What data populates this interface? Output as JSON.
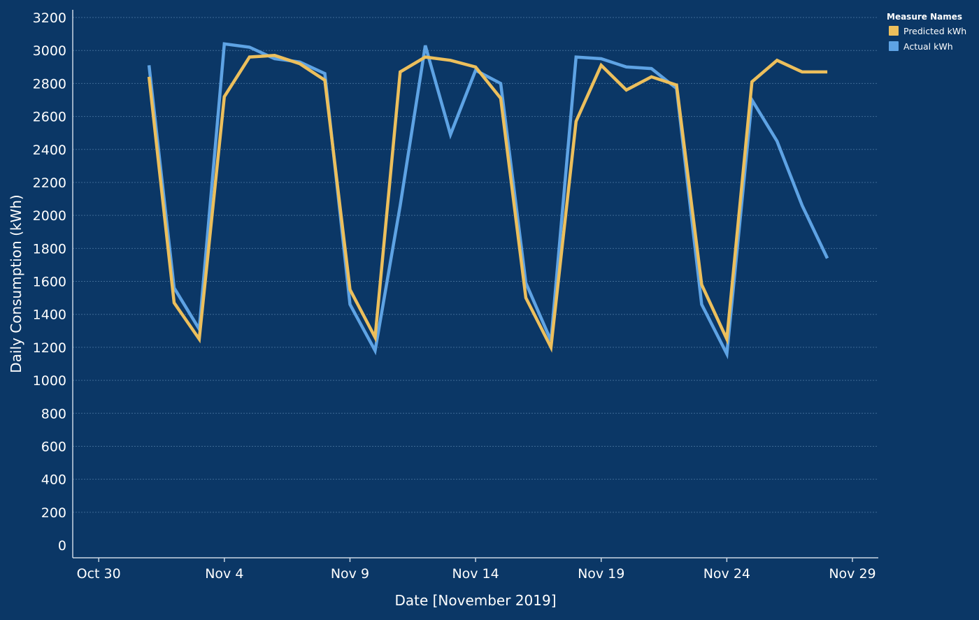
{
  "chart_data": {
    "type": "line",
    "xlabel": "Date [November 2019]",
    "ylabel": "Daily Consumption (kWh)",
    "ylim": [
      0,
      3200
    ],
    "xlim": [
      "2019-10-29",
      "2019-11-29"
    ],
    "y_ticks": [
      0,
      200,
      400,
      600,
      800,
      1000,
      1200,
      1400,
      1600,
      1800,
      2000,
      2200,
      2400,
      2600,
      2800,
      3000,
      3200
    ],
    "x_ticks": [
      {
        "date": "2019-10-30",
        "label": "Oct 30"
      },
      {
        "date": "2019-11-04",
        "label": "Nov 4"
      },
      {
        "date": "2019-11-09",
        "label": "Nov 9"
      },
      {
        "date": "2019-11-14",
        "label": "Nov 14"
      },
      {
        "date": "2019-11-19",
        "label": "Nov 19"
      },
      {
        "date": "2019-11-24",
        "label": "Nov 24"
      },
      {
        "date": "2019-11-29",
        "label": "Nov 29"
      }
    ],
    "grid": true,
    "legend": {
      "title": "Measure Names",
      "position": "top-right"
    },
    "x": [
      "2019-11-01",
      "2019-11-02",
      "2019-11-03",
      "2019-11-04",
      "2019-11-05",
      "2019-11-06",
      "2019-11-07",
      "2019-11-08",
      "2019-11-09",
      "2019-11-10",
      "2019-11-11",
      "2019-11-12",
      "2019-11-13",
      "2019-11-14",
      "2019-11-15",
      "2019-11-16",
      "2019-11-17",
      "2019-11-18",
      "2019-11-19",
      "2019-11-20",
      "2019-11-21",
      "2019-11-22",
      "2019-11-23",
      "2019-11-24",
      "2019-11-25",
      "2019-11-26",
      "2019-11-27",
      "2019-11-28"
    ],
    "series": [
      {
        "name": "Predicted kWh",
        "color": "#ecbf5c",
        "values": [
          2840,
          1470,
          1250,
          2720,
          2960,
          2970,
          2920,
          2820,
          1550,
          1260,
          2870,
          2960,
          2940,
          2900,
          2710,
          1500,
          1200,
          2570,
          2910,
          2760,
          2840,
          2790,
          1580,
          1250,
          2810,
          2940,
          2870,
          2870
        ]
      },
      {
        "name": "Actual kWh",
        "color": "#5ea3e4",
        "values": [
          2910,
          1560,
          1310,
          3040,
          3020,
          2950,
          2930,
          2860,
          1460,
          1180,
          2060,
          3030,
          2490,
          2880,
          2800,
          1590,
          1240,
          2960,
          2950,
          2900,
          2890,
          2770,
          1460,
          1160,
          2700,
          2450,
          2060,
          1740
        ]
      }
    ]
  }
}
